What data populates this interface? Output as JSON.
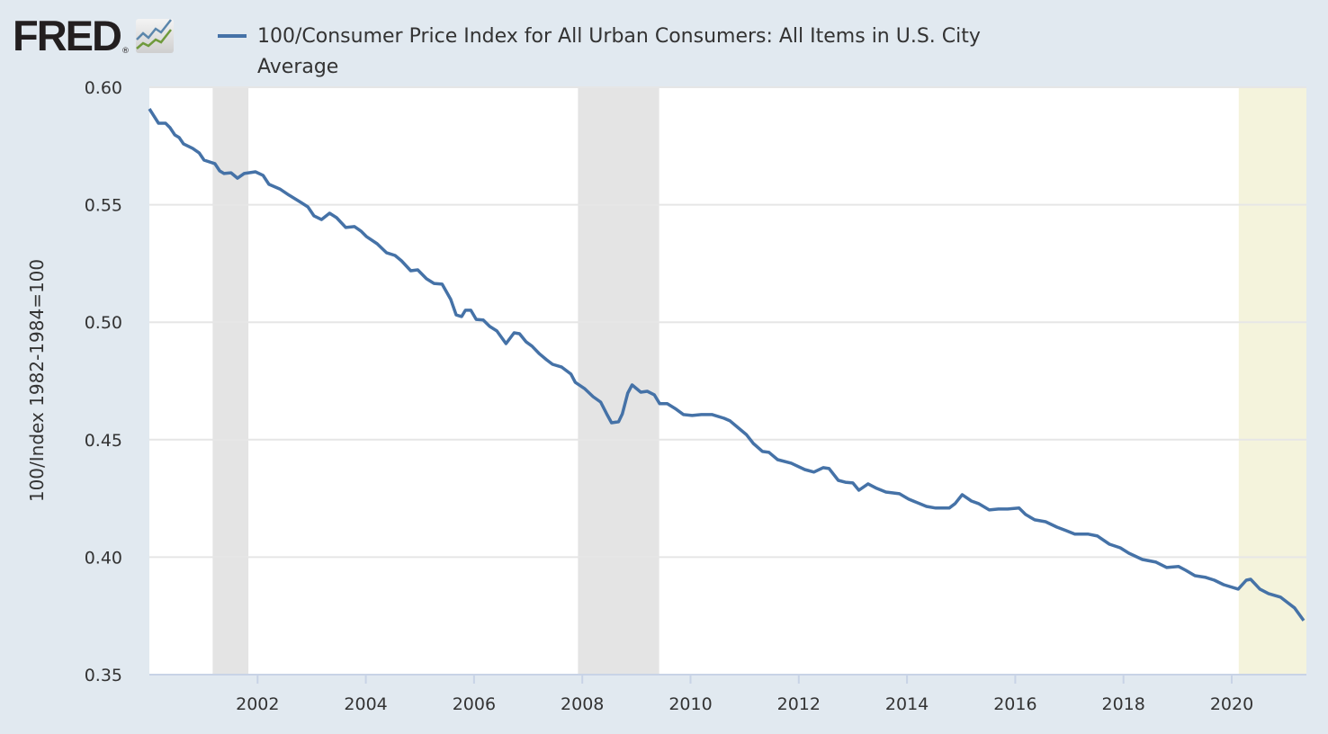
{
  "logo": {
    "text": "FRED",
    "registered": "®"
  },
  "chart_data": {
    "type": "line",
    "title": "100/Consumer Price Index for All Urban Consumers: All Items in U.S. City Average",
    "xlabel": "",
    "ylabel": "100/Index 1982-1984=100",
    "xlim": [
      2000.0,
      2021.38
    ],
    "ylim": [
      0.35,
      0.6
    ],
    "yticks": [
      "0.35",
      "0.40",
      "0.45",
      "0.50",
      "0.55",
      "0.60"
    ],
    "xticks": [
      "2002",
      "2004",
      "2006",
      "2008",
      "2010",
      "2012",
      "2014",
      "2016",
      "2018",
      "2020"
    ],
    "grid": true,
    "legend": "top",
    "line_color": "#4572a7",
    "shaded_periods": [
      {
        "start": 2001.17,
        "end": 2001.83,
        "color": "#e4e4e4"
      },
      {
        "start": 2007.92,
        "end": 2009.42,
        "color": "#e4e4e4"
      },
      {
        "start": 2020.13,
        "end": 2021.38,
        "color": "#f4f3dc"
      }
    ],
    "series": [
      {
        "name": "100/Consumer Price Index for All Urban Consumers: All Items in U.S. City Average",
        "x": [
          2000.0,
          2000.17,
          2000.3,
          2000.38,
          2000.47,
          2000.55,
          2000.63,
          2000.8,
          2000.92,
          2001.01,
          2001.21,
          2001.3,
          2001.38,
          2001.51,
          2001.63,
          2001.75,
          2001.96,
          2002.1,
          2002.21,
          2002.41,
          2002.58,
          2002.8,
          2002.93,
          2003.04,
          2003.18,
          2003.33,
          2003.46,
          2003.63,
          2003.79,
          2003.91,
          2004.01,
          2004.21,
          2004.38,
          2004.54,
          2004.66,
          2004.83,
          2004.96,
          2005.12,
          2005.26,
          2005.41,
          2005.57,
          2005.67,
          2005.77,
          2005.84,
          2005.94,
          2006.04,
          2006.17,
          2006.29,
          2006.42,
          2006.59,
          2006.74,
          2006.84,
          2006.96,
          2007.07,
          2007.2,
          2007.34,
          2007.45,
          2007.62,
          2007.79,
          2007.87,
          2008.04,
          2008.2,
          2008.34,
          2008.45,
          2008.54,
          2008.67,
          2008.74,
          2008.84,
          2008.92,
          2009.08,
          2009.2,
          2009.33,
          2009.43,
          2009.57,
          2009.73,
          2009.87,
          2010.03,
          2010.2,
          2010.4,
          2010.62,
          2010.73,
          2010.87,
          2011.03,
          2011.16,
          2011.33,
          2011.45,
          2011.61,
          2011.86,
          2012.11,
          2012.28,
          2012.45,
          2012.56,
          2012.73,
          2012.86,
          2013.0,
          2013.11,
          2013.28,
          2013.44,
          2013.61,
          2013.86,
          2014.03,
          2014.36,
          2014.53,
          2014.78,
          2014.89,
          2015.02,
          2015.19,
          2015.32,
          2015.52,
          2015.69,
          2015.86,
          2016.07,
          2016.19,
          2016.36,
          2016.56,
          2016.77,
          2016.94,
          2017.1,
          2017.35,
          2017.52,
          2017.74,
          2017.94,
          2018.1,
          2018.35,
          2018.6,
          2018.8,
          2019.02,
          2019.15,
          2019.32,
          2019.52,
          2019.68,
          2019.85,
          2020.12,
          2020.27,
          2020.35,
          2020.52,
          2020.68,
          2020.9,
          2021.03,
          2021.16,
          2021.33
        ],
        "values": [
          0.5908,
          0.5847,
          0.5847,
          0.5828,
          0.5797,
          0.5786,
          0.5759,
          0.574,
          0.5721,
          0.569,
          0.5675,
          0.5644,
          0.5633,
          0.5636,
          0.5613,
          0.5633,
          0.564,
          0.5625,
          0.5587,
          0.5567,
          0.5541,
          0.551,
          0.5491,
          0.5453,
          0.5437,
          0.5464,
          0.5445,
          0.5403,
          0.5407,
          0.5388,
          0.5365,
          0.5334,
          0.5296,
          0.5284,
          0.5261,
          0.5219,
          0.5223,
          0.5185,
          0.5165,
          0.5162,
          0.5097,
          0.5031,
          0.5024,
          0.5051,
          0.5051,
          0.5012,
          0.5009,
          0.4982,
          0.4963,
          0.4909,
          0.4955,
          0.4951,
          0.4917,
          0.4898,
          0.4867,
          0.484,
          0.4821,
          0.4809,
          0.4779,
          0.4744,
          0.4718,
          0.4683,
          0.466,
          0.461,
          0.4572,
          0.4576,
          0.461,
          0.4698,
          0.4733,
          0.4702,
          0.4706,
          0.4691,
          0.4653,
          0.4653,
          0.463,
          0.4607,
          0.4603,
          0.4607,
          0.4607,
          0.4591,
          0.458,
          0.4553,
          0.4522,
          0.4484,
          0.445,
          0.4446,
          0.4415,
          0.44,
          0.4373,
          0.4362,
          0.4381,
          0.4377,
          0.4327,
          0.4319,
          0.4316,
          0.4285,
          0.4312,
          0.4293,
          0.4277,
          0.427,
          0.4247,
          0.4216,
          0.4209,
          0.4209,
          0.4228,
          0.4266,
          0.4239,
          0.4228,
          0.4201,
          0.4205,
          0.4205,
          0.4209,
          0.4182,
          0.4159,
          0.4151,
          0.4128,
          0.4113,
          0.4098,
          0.4098,
          0.409,
          0.4055,
          0.404,
          0.4017,
          0.399,
          0.3979,
          0.3956,
          0.396,
          0.3944,
          0.3921,
          0.3914,
          0.3902,
          0.3883,
          0.3864,
          0.3902,
          0.3906,
          0.3864,
          0.3845,
          0.383,
          0.3807,
          0.3784,
          0.373
        ]
      }
    ]
  }
}
